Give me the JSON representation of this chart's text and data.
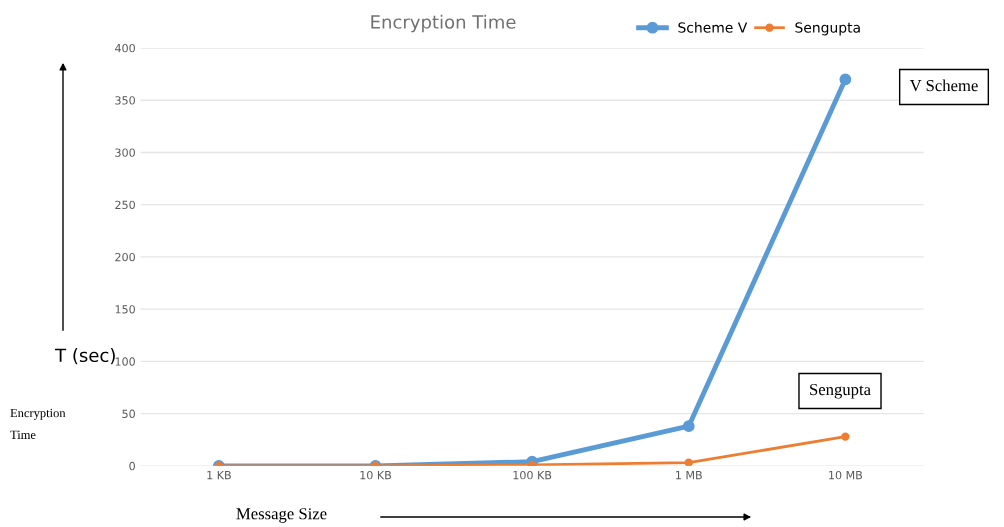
{
  "chart_data": {
    "type": "line",
    "title": "Encryption Time",
    "xlabel": "Message Size",
    "ylabel": "T (sec)",
    "categories": [
      "1 KB",
      "10 KB",
      "100 KB",
      "1 MB",
      "10 MB"
    ],
    "series": [
      {
        "name": "Scheme V",
        "color": "#5b9bd5",
        "values": [
          0,
          0,
          4,
          38,
          370
        ]
      },
      {
        "name": "Sengupta",
        "color": "#ed7d31",
        "values": [
          0,
          0,
          1,
          3,
          28
        ]
      }
    ],
    "ylim": [
      0,
      400
    ],
    "yticks": [
      0,
      50,
      100,
      150,
      200,
      250,
      300,
      350,
      400
    ],
    "grid": "y",
    "legend": "top",
    "marker": "circle",
    "line_style": "solid",
    "annotations": [
      "V Scheme",
      "Sengupta",
      "Encryption Time"
    ]
  }
}
